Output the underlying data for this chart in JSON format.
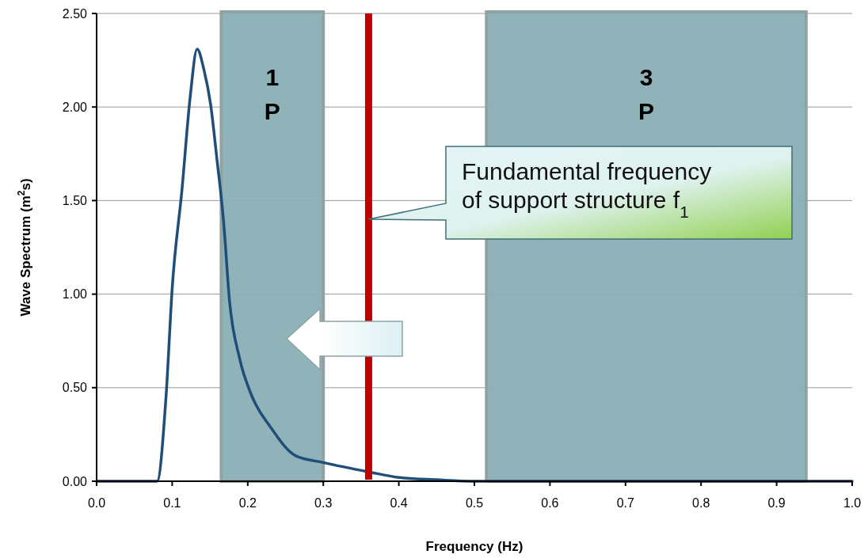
{
  "chart_data": {
    "type": "line",
    "xlabel": "Frequency (Hz)",
    "ylabel": "Wave Spectrum (m$^{2}$s)",
    "xlim": [
      0,
      1
    ],
    "ylim": [
      0,
      2.5
    ],
    "xticks": [
      {
        "value": 0,
        "label": "0.0"
      },
      {
        "value": 0.1,
        "label": "0.1"
      },
      {
        "value": 0.2,
        "label": "0.2"
      },
      {
        "value": 0.3,
        "label": "0.3"
      },
      {
        "value": 0.4,
        "label": "0.4"
      },
      {
        "value": 0.5,
        "label": "0.5"
      },
      {
        "value": 0.6,
        "label": "0.6"
      },
      {
        "value": 0.7,
        "label": "0.7"
      },
      {
        "value": 0.8,
        "label": "0.8"
      },
      {
        "value": 0.9,
        "label": "0.9"
      },
      {
        "value": 1,
        "label": "1.0"
      }
    ],
    "yticks": [
      {
        "value": 0,
        "label": "0.00"
      },
      {
        "value": 0.5,
        "label": "0.50"
      },
      {
        "value": 1,
        "label": "1.00"
      },
      {
        "value": 1.5,
        "label": "1.50"
      },
      {
        "value": 2,
        "label": "2.00"
      },
      {
        "value": 2.5,
        "label": "2.50"
      }
    ],
    "grid": "y",
    "marker": "none",
    "line_style": "solid",
    "series": [
      {
        "color": "#1f4e79",
        "x": [
          0,
          0.08,
          0.092,
          0.1,
          0.113,
          0.124,
          0.133,
          0.142,
          0.151,
          0.159,
          0.168,
          0.176,
          0.189,
          0.205,
          0.23,
          0.264,
          0.3,
          0.36,
          0.4,
          0.45,
          0.5,
          1.0
        ],
        "values": [
          0,
          0,
          0.46,
          1.03,
          1.56,
          2.06,
          2.31,
          2.2,
          2.01,
          1.73,
          1.39,
          0.96,
          0.66,
          0.46,
          0.29,
          0.135,
          0.1,
          0.05,
          0.02,
          0.008,
          0,
          0
        ]
      }
    ],
    "bands": [
      {
        "axis": "x",
        "from": 0.165,
        "to": 0.3,
        "label": "1\nP",
        "color": "#8aafb5"
      },
      {
        "axis": "x",
        "from": 0.516,
        "to": 0.939,
        "label": "3\nP",
        "color": "#8aafb5"
      }
    ],
    "ref_lines": [
      {
        "axis": "x",
        "value": 0.36,
        "color": "#c00000"
      }
    ],
    "annotations": [
      "Fundamental frequency\nof support structure f$_{1}$"
    ]
  }
}
